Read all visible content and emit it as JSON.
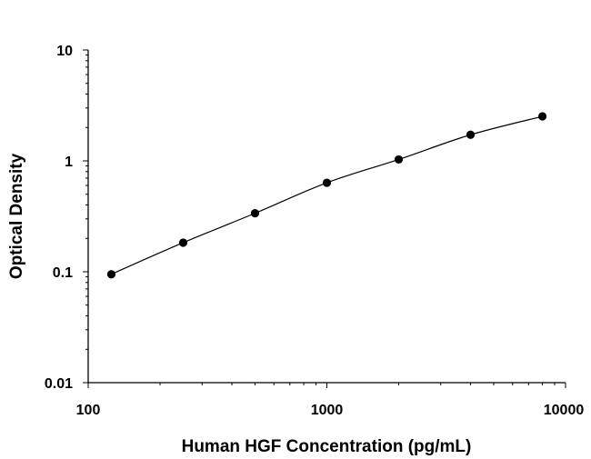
{
  "chart_data": {
    "type": "scatter",
    "title": "",
    "xlabel": "Human HGF Concentration (pg/mL)",
    "ylabel": "Optical Density",
    "x_scale": "log",
    "y_scale": "log",
    "xlim": [
      100,
      10000
    ],
    "ylim": [
      0.01,
      10
    ],
    "x_ticks": [
      "100",
      "1000",
      "10000"
    ],
    "y_ticks": [
      "0.01",
      "0.1",
      "1",
      "10"
    ],
    "grid": false,
    "legend": "none",
    "marker_color": "#000000",
    "fit_line": "smooth curve through points",
    "series": [
      {
        "x": [
          125,
          250,
          500,
          1000,
          2000,
          4000,
          8000
        ],
        "y": [
          0.095,
          0.183,
          0.337,
          0.635,
          1.03,
          1.72,
          2.52
        ]
      }
    ]
  }
}
